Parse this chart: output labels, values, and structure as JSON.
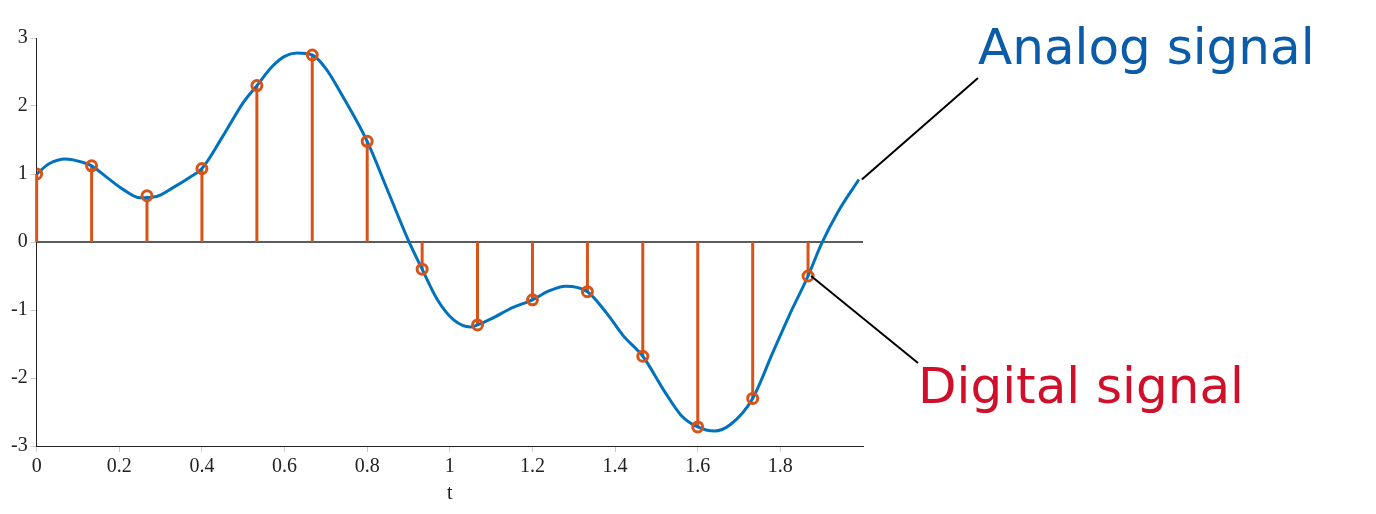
{
  "chart_data": {
    "type": "line",
    "xlabel": "t",
    "xlim": [
      0,
      2
    ],
    "xticks": [
      0,
      0.2,
      0.4,
      0.6,
      0.8,
      1,
      1.2,
      1.4,
      1.6,
      1.8
    ],
    "ylim": [
      -3,
      3
    ],
    "yticks": [
      -3,
      -2,
      -1,
      0,
      1,
      2,
      3
    ],
    "grid": false,
    "legend": false,
    "ref_lines": [
      {
        "axis": "y",
        "value": 0,
        "color": "#262626"
      }
    ],
    "series": [
      {
        "name": "Analog signal",
        "type": "line",
        "color": "#0072bd",
        "marker": "none",
        "x": [
          0,
          0.03,
          0.07,
          0.1,
          0.133,
          0.17,
          0.21,
          0.25,
          0.29,
          0.33,
          0.37,
          0.4,
          0.45,
          0.5,
          0.533,
          0.57,
          0.6,
          0.63,
          0.667,
          0.7,
          0.74,
          0.8,
          0.85,
          0.9,
          0.933,
          0.97,
          1.01,
          1.05,
          1.067,
          1.1,
          1.15,
          1.2,
          1.24,
          1.28,
          1.333,
          1.38,
          1.42,
          1.467,
          1.52,
          1.56,
          1.6,
          1.64,
          1.68,
          1.733,
          1.78,
          1.82,
          1.867,
          1.9,
          1.94,
          1.99
        ],
        "values": [
          1.0,
          1.15,
          1.22,
          1.19,
          1.12,
          0.95,
          0.77,
          0.65,
          0.67,
          0.8,
          0.95,
          1.08,
          1.55,
          2.05,
          2.3,
          2.58,
          2.73,
          2.78,
          2.75,
          2.55,
          2.15,
          1.48,
          0.75,
          0.02,
          -0.4,
          -0.85,
          -1.15,
          -1.25,
          -1.22,
          -1.13,
          -0.97,
          -0.85,
          -0.72,
          -0.65,
          -0.73,
          -1.05,
          -1.38,
          -1.68,
          -2.2,
          -2.55,
          -2.72,
          -2.78,
          -2.68,
          -2.3,
          -1.65,
          -1.1,
          -0.5,
          -0.02,
          0.45,
          0.92
        ]
      },
      {
        "name": "Digital signal",
        "type": "lollipop",
        "color": "#d95319",
        "marker": "circle",
        "x": [
          0,
          0.133,
          0.267,
          0.4,
          0.533,
          0.667,
          0.8,
          0.933,
          1.067,
          1.2,
          1.333,
          1.467,
          1.6,
          1.733,
          1.867
        ],
        "values": [
          1.0,
          1.12,
          0.68,
          1.08,
          2.3,
          2.75,
          1.48,
          -0.4,
          -1.22,
          -0.85,
          -0.73,
          -1.68,
          -2.72,
          -2.3,
          -0.5
        ]
      }
    ]
  }
}
